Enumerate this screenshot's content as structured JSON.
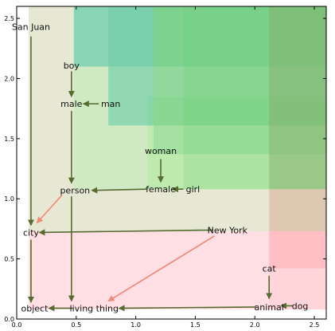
{
  "chart_data": {
    "type": "scatter",
    "title": "",
    "xlabel": "",
    "ylabel": "",
    "xlim": [
      0.0,
      2.6
    ],
    "ylim": [
      0.0,
      2.6
    ],
    "x_ticks": [
      "0.0",
      "0.5",
      "1.0",
      "1.5",
      "2.0",
      "2.5"
    ],
    "y_ticks": [
      "0.0",
      "0.5",
      "1.0",
      "1.5",
      "2.0",
      "2.5"
    ],
    "grid": false,
    "colors": {
      "arrow_dark": "#556b2f",
      "arrow_salmon": "#f08878",
      "pink": "#ffb0b8",
      "beige": "#d6d9b8",
      "light_green": "#b8ecb0",
      "green": "#58c878",
      "teal": "#60c8c8",
      "dark_green": "#66a668",
      "olive": "#b6b870"
    },
    "regions": [
      {
        "x0": 0.1,
        "x1": 2.6,
        "y0": 0.08,
        "y1": 0.73,
        "color": "#ffb0b8",
        "opacity": 0.4
      },
      {
        "x0": 0.1,
        "x1": 2.6,
        "y0": 0.73,
        "y1": 2.6,
        "color": "#d6d9b8",
        "opacity": 0.6
      },
      {
        "x0": 0.48,
        "x1": 2.6,
        "y0": 1.08,
        "y1": 2.6,
        "color": "#b8ecb0",
        "opacity": 0.5
      },
      {
        "x0": 1.1,
        "x1": 2.6,
        "y0": 1.08,
        "y1": 1.85,
        "color": "#a8e898",
        "opacity": 0.45
      },
      {
        "x0": 0.48,
        "x1": 2.6,
        "y0": 2.1,
        "y1": 2.6,
        "color": "#58c878",
        "opacity": 0.35
      },
      {
        "x0": 0.77,
        "x1": 2.6,
        "y0": 1.61,
        "y1": 2.6,
        "color": "#58c878",
        "opacity": 0.35
      },
      {
        "x0": 0.48,
        "x1": 1.15,
        "y0": 2.1,
        "y1": 2.6,
        "color": "#60c8c8",
        "opacity": 0.4
      },
      {
        "x0": 0.77,
        "x1": 1.15,
        "y0": 1.61,
        "y1": 2.1,
        "color": "#60c8c8",
        "opacity": 0.3
      },
      {
        "x0": 1.15,
        "x1": 2.6,
        "y0": 1.37,
        "y1": 2.6,
        "color": "#58c878",
        "opacity": 0.25
      },
      {
        "x0": 1.4,
        "x1": 2.6,
        "y0": 1.08,
        "y1": 2.6,
        "color": "#66cc70",
        "opacity": 0.2
      },
      {
        "x0": 2.12,
        "x1": 2.6,
        "y0": 1.08,
        "y1": 2.6,
        "color": "#86a868",
        "opacity": 0.45
      },
      {
        "x0": 2.12,
        "x1": 2.6,
        "y0": 0.73,
        "y1": 1.08,
        "color": "#d8a890",
        "opacity": 0.5
      },
      {
        "x0": 2.12,
        "x1": 2.6,
        "y0": 0.42,
        "y1": 0.73,
        "color": "#ff98a0",
        "opacity": 0.45
      },
      {
        "x0": 2.12,
        "x1": 2.6,
        "y0": 0.08,
        "y1": 0.42,
        "color": "#ffb0b8",
        "opacity": 0.2
      }
    ],
    "words": [
      {
        "label": "San Juan",
        "x": 0.12,
        "y": 2.43
      },
      {
        "label": "boy",
        "x": 0.46,
        "y": 2.11
      },
      {
        "label": "male",
        "x": 0.46,
        "y": 1.79
      },
      {
        "label": "man",
        "x": 0.79,
        "y": 1.79
      },
      {
        "label": "woman",
        "x": 1.21,
        "y": 1.4
      },
      {
        "label": "person",
        "x": 0.49,
        "y": 1.07
      },
      {
        "label": "female",
        "x": 1.21,
        "y": 1.08
      },
      {
        "label": "girl",
        "x": 1.48,
        "y": 1.08
      },
      {
        "label": "city",
        "x": 0.12,
        "y": 0.72
      },
      {
        "label": "New York",
        "x": 1.77,
        "y": 0.74
      },
      {
        "label": "cat",
        "x": 2.12,
        "y": 0.42
      },
      {
        "label": "object",
        "x": 0.15,
        "y": 0.09
      },
      {
        "label": "living thing",
        "x": 0.65,
        "y": 0.09
      },
      {
        "label": "animal",
        "x": 2.12,
        "y": 0.1
      },
      {
        "label": "dog",
        "x": 2.38,
        "y": 0.11
      }
    ],
    "arrows": [
      {
        "x1": 0.12,
        "y1": 2.35,
        "x2": 0.12,
        "y2": 0.78,
        "color": "#556b2f"
      },
      {
        "x1": 0.12,
        "y1": 0.66,
        "x2": 0.12,
        "y2": 0.14,
        "color": "#556b2f"
      },
      {
        "x1": 0.46,
        "y1": 2.06,
        "x2": 0.46,
        "y2": 1.85,
        "color": "#556b2f"
      },
      {
        "x1": 0.69,
        "y1": 1.79,
        "x2": 0.56,
        "y2": 1.79,
        "color": "#556b2f"
      },
      {
        "x1": 0.46,
        "y1": 1.73,
        "x2": 0.46,
        "y2": 1.13,
        "color": "#556b2f"
      },
      {
        "x1": 1.21,
        "y1": 1.33,
        "x2": 1.21,
        "y2": 1.14,
        "color": "#556b2f"
      },
      {
        "x1": 1.09,
        "y1": 1.08,
        "x2": 0.63,
        "y2": 1.07,
        "color": "#556b2f"
      },
      {
        "x1": 1.4,
        "y1": 1.08,
        "x2": 1.31,
        "y2": 1.08,
        "color": "#556b2f"
      },
      {
        "x1": 0.46,
        "y1": 1.02,
        "x2": 0.46,
        "y2": 0.15,
        "color": "#556b2f"
      },
      {
        "x1": 1.65,
        "y1": 0.74,
        "x2": 0.19,
        "y2": 0.72,
        "color": "#556b2f"
      },
      {
        "x1": 2.12,
        "y1": 0.36,
        "x2": 2.12,
        "y2": 0.17,
        "color": "#556b2f"
      },
      {
        "x1": 2.01,
        "y1": 0.1,
        "x2": 0.86,
        "y2": 0.09,
        "color": "#556b2f"
      },
      {
        "x1": 2.32,
        "y1": 0.11,
        "x2": 2.22,
        "y2": 0.11,
        "color": "#556b2f"
      },
      {
        "x1": 0.47,
        "y1": 0.09,
        "x2": 0.27,
        "y2": 0.09,
        "color": "#556b2f"
      },
      {
        "x1": 0.38,
        "y1": 1.03,
        "x2": 0.17,
        "y2": 0.8,
        "color": "#f08878"
      },
      {
        "x1": 1.66,
        "y1": 0.69,
        "x2": 0.77,
        "y2": 0.15,
        "color": "#f08878"
      }
    ]
  }
}
